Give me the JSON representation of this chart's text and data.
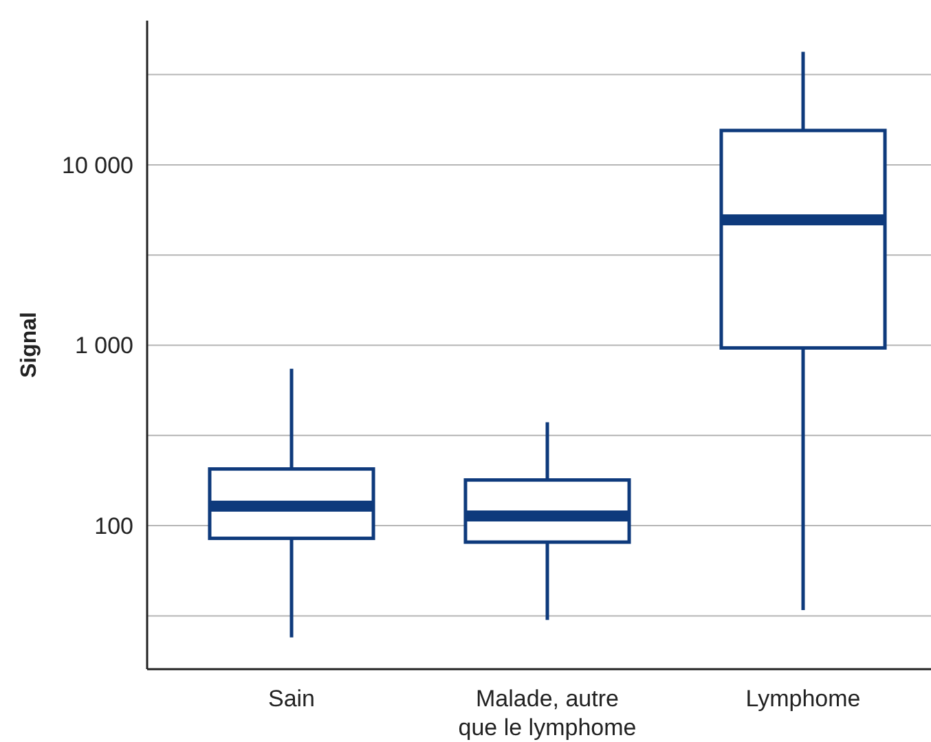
{
  "chart_data": {
    "type": "box",
    "ylabel": "Signal",
    "categories": [
      "Sain",
      "Malade, autre que le lymphome",
      "Lymphome"
    ],
    "boxes": [
      {
        "low": 24,
        "q1": 85,
        "median": 128,
        "q3": 206,
        "high": 741
      },
      {
        "low": 30,
        "q1": 81,
        "median": 113,
        "q3": 179,
        "high": 374
      },
      {
        "low": 34,
        "q1": 966,
        "median": 4950,
        "q3": 15500,
        "high": 42300
      }
    ],
    "color": "#0e3a7c",
    "log": true,
    "ylim": [
      16,
      63000
    ],
    "yticks": [
      {
        "value": 31.6,
        "label": null
      },
      {
        "value": 100,
        "label": "100"
      },
      {
        "value": 316,
        "label": null
      },
      {
        "value": 1000,
        "label": "1 000"
      },
      {
        "value": 3162,
        "label": null
      },
      {
        "value": 10000,
        "label": "10 000"
      },
      {
        "value": 31623,
        "label": null
      }
    ],
    "grid": "y"
  }
}
